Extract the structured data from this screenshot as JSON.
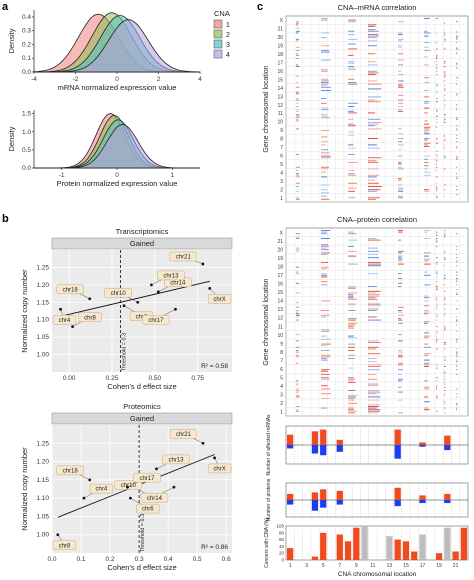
{
  "panel_letters": {
    "a": "a",
    "b": "b",
    "c": "c"
  },
  "chart_data": [
    {
      "id": "a_top",
      "type": "area",
      "xlabel": "mRNA normalized expression value",
      "ylabel": "Density",
      "xlim": [
        -4,
        4
      ],
      "ylim": [
        0,
        0.45
      ],
      "xticks": [
        "-4",
        "-2",
        "0",
        "2",
        "4"
      ],
      "yticks": [
        "0.0",
        "0.1",
        "0.2",
        "0.3",
        "0.4"
      ],
      "legend_title": "CNA",
      "legend": [
        "1",
        "2",
        "3",
        "4"
      ],
      "series": [
        {
          "name": "1",
          "color": "#f08080",
          "mean": -0.9,
          "sd": 0.95,
          "peak": 0.42
        },
        {
          "name": "2",
          "color": "#8fbf4f",
          "mean": -0.25,
          "sd": 0.95,
          "peak": 0.43
        },
        {
          "name": "3",
          "color": "#4fc3c3",
          "mean": 0.15,
          "sd": 0.95,
          "peak": 0.41
        },
        {
          "name": "4",
          "color": "#b59ee0",
          "mean": 0.55,
          "sd": 0.95,
          "peak": 0.38
        }
      ]
    },
    {
      "id": "a_bottom",
      "type": "area",
      "xlabel": "Protein normalized expression value",
      "ylabel": "Density",
      "xlim": [
        -1.5,
        1.5
      ],
      "ylim": [
        0,
        1.6
      ],
      "xticks": [
        "-1",
        "0",
        "1"
      ],
      "yticks": [
        "0.0",
        "0.5",
        "1.0",
        "1.5"
      ],
      "series": [
        {
          "name": "1",
          "color": "#f08080",
          "mean": -0.12,
          "sd": 0.26,
          "peak": 1.5
        },
        {
          "name": "2",
          "color": "#8fbf4f",
          "mean": -0.05,
          "sd": 0.26,
          "peak": 1.45
        },
        {
          "name": "3",
          "color": "#4fc3c3",
          "mean": 0.02,
          "sd": 0.27,
          "peak": 1.33
        },
        {
          "name": "4",
          "color": "#b59ee0",
          "mean": 0.1,
          "sd": 0.28,
          "peak": 1.2
        }
      ]
    },
    {
      "id": "b_top",
      "type": "scatter",
      "title": "Transcriptomics",
      "strip": "Gained",
      "xlabel": "Cohen's d effect size",
      "ylabel": "Normalized copy number",
      "xlim": [
        -0.1,
        0.95
      ],
      "ylim": [
        0.95,
        1.3
      ],
      "xticks": [
        "0.00",
        "0.25",
        "0.50",
        "0.75"
      ],
      "yticks": [
        "1.00",
        "1.05",
        "1.10",
        "1.15",
        "1.20",
        "1.25"
      ],
      "threshold_label": "Threshold = 0.3",
      "r2_label": "R² = 0.58",
      "points": [
        {
          "label": "chr4",
          "x": -0.05,
          "y": 1.13
        },
        {
          "label": "chr8",
          "x": 0.02,
          "y": 1.08
        },
        {
          "label": "chr18",
          "x": 0.12,
          "y": 1.16
        },
        {
          "label": "chr6",
          "x": 0.32,
          "y": 1.14
        },
        {
          "label": "chr10",
          "x": 0.4,
          "y": 1.15
        },
        {
          "label": "chr14",
          "x": 0.52,
          "y": 1.18
        },
        {
          "label": "chr17",
          "x": 0.62,
          "y": 1.13
        },
        {
          "label": "chr13",
          "x": 0.48,
          "y": 1.2
        },
        {
          "label": "chr21",
          "x": 0.78,
          "y": 1.26
        },
        {
          "label": "chrX",
          "x": 0.82,
          "y": 1.19
        }
      ]
    },
    {
      "id": "b_bottom",
      "type": "scatter",
      "title": "Proteomics",
      "strip": "Gained",
      "xlabel": "Cohen's d effect size",
      "ylabel": "Normalized copy number",
      "xlim": [
        0,
        0.62
      ],
      "ylim": [
        0.95,
        1.3
      ],
      "xticks": [
        "0.0",
        "0.1",
        "0.2",
        "0.3",
        "0.4",
        "0.5",
        "0.6"
      ],
      "yticks": [
        "1.00",
        "1.05",
        "1.10",
        "1.15",
        "1.20",
        "1.25"
      ],
      "threshold_label": "Threshold = 0.3",
      "r2_label": "R² = 0.86",
      "points": [
        {
          "label": "chr8",
          "x": 0.02,
          "y": 1.0
        },
        {
          "label": "chr4",
          "x": 0.11,
          "y": 1.1
        },
        {
          "label": "chr18",
          "x": 0.13,
          "y": 1.15
        },
        {
          "label": "chr6",
          "x": 0.27,
          "y": 1.1
        },
        {
          "label": "chr10",
          "x": 0.33,
          "y": 1.11
        },
        {
          "label": "chr17",
          "x": 0.26,
          "y": 1.13
        },
        {
          "label": "chr14",
          "x": 0.42,
          "y": 1.13
        },
        {
          "label": "chr13",
          "x": 0.36,
          "y": 1.18
        },
        {
          "label": "chr21",
          "x": 0.52,
          "y": 1.25
        },
        {
          "label": "chrX",
          "x": 0.56,
          "y": 1.21
        }
      ]
    },
    {
      "id": "c_heatmaps",
      "type": "heatmap",
      "titles": [
        "CNA–mRNA correlation",
        "CNA–protein correlation"
      ],
      "ylabel": "Gene chromosomal location",
      "xlabel": "CNA chromosomal location",
      "row_labels": [
        "X",
        "21",
        "20",
        "19",
        "18",
        "17",
        "16",
        "15",
        "14",
        "13",
        "12",
        "11",
        "10",
        "9",
        "8",
        "7",
        "6",
        "5",
        "4",
        "3",
        "2",
        "1"
      ],
      "col_labels": [
        "1",
        "3",
        "5",
        "7",
        "9",
        "11",
        "13",
        "15",
        "17",
        "19",
        "21"
      ]
    },
    {
      "id": "c_bars",
      "type": "bar",
      "ylabels": [
        "Number of affected mRNAs",
        "Number of proteins",
        "Cancers with CNA (%)"
      ],
      "yticks_pct": [
        "0",
        "20",
        "40",
        "60",
        "80",
        "100"
      ],
      "colors": {
        "gain": "#ee4b1f",
        "loss": "#1b3cf0",
        "neutral": "#bdbdbd"
      }
    }
  ]
}
